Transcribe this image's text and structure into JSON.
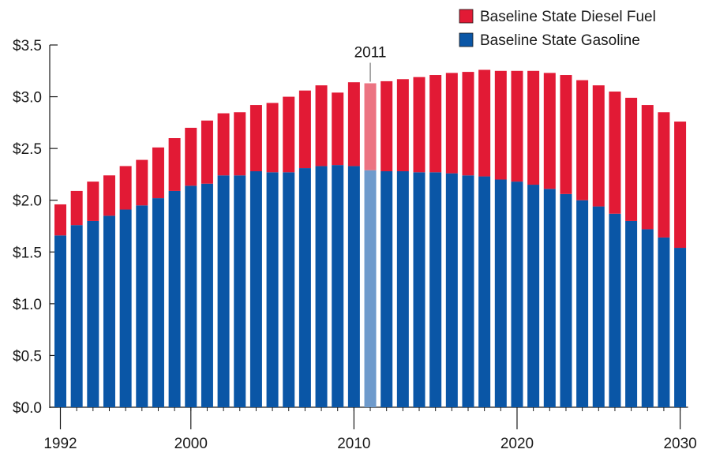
{
  "chart_data": {
    "type": "bar",
    "stacked": true,
    "ylim": [
      0,
      3.5
    ],
    "y_ticks": [
      {
        "value": 0.0,
        "label": "$0.0"
      },
      {
        "value": 0.5,
        "label": "$0.5"
      },
      {
        "value": 1.0,
        "label": "$1.0"
      },
      {
        "value": 1.5,
        "label": "$1.5"
      },
      {
        "value": 2.0,
        "label": "$2.0"
      },
      {
        "value": 2.5,
        "label": "$2.5"
      },
      {
        "value": 3.0,
        "label": "$3.0"
      },
      {
        "value": 3.5,
        "label": "$3.5"
      }
    ],
    "x_ticks": [
      {
        "value": 1992,
        "label": "1992"
      },
      {
        "value": 2000,
        "label": "2000"
      },
      {
        "value": 2010,
        "label": "2010"
      },
      {
        "value": 2020,
        "label": "2020"
      },
      {
        "value": 2030,
        "label": "2030"
      }
    ],
    "categories": [
      1992,
      1993,
      1994,
      1995,
      1996,
      1997,
      1998,
      1999,
      2000,
      2001,
      2002,
      2003,
      2004,
      2005,
      2006,
      2007,
      2008,
      2009,
      2010,
      2011,
      2012,
      2013,
      2014,
      2015,
      2016,
      2017,
      2018,
      2019,
      2020,
      2021,
      2022,
      2023,
      2024,
      2025,
      2026,
      2027,
      2028,
      2029,
      2030
    ],
    "series": [
      {
        "name": "Baseline State Gasoline",
        "color": "#0a56a6",
        "highlight_color": "#6f9bcc",
        "values": [
          1.66,
          1.76,
          1.8,
          1.85,
          1.91,
          1.95,
          2.02,
          2.09,
          2.14,
          2.16,
          2.24,
          2.24,
          2.28,
          2.27,
          2.27,
          2.31,
          2.33,
          2.34,
          2.33,
          2.29,
          2.28,
          2.28,
          2.27,
          2.27,
          2.26,
          2.24,
          2.23,
          2.2,
          2.18,
          2.15,
          2.11,
          2.06,
          2.0,
          1.94,
          1.87,
          1.8,
          1.72,
          1.64,
          1.54
        ]
      },
      {
        "name": "Baseline State Diesel Fuel",
        "color": "#e21a35",
        "highlight_color": "#ec7482",
        "values": [
          0.3,
          0.33,
          0.38,
          0.39,
          0.42,
          0.44,
          0.49,
          0.51,
          0.56,
          0.61,
          0.6,
          0.61,
          0.64,
          0.67,
          0.73,
          0.75,
          0.78,
          0.7,
          0.81,
          0.84,
          0.87,
          0.89,
          0.92,
          0.94,
          0.97,
          1.0,
          1.03,
          1.05,
          1.07,
          1.1,
          1.12,
          1.15,
          1.16,
          1.17,
          1.18,
          1.19,
          1.2,
          1.21,
          1.22
        ]
      }
    ],
    "highlight": {
      "category": 2011,
      "label": "2011"
    },
    "legend": {
      "position": "top-right",
      "order": [
        "Baseline State Diesel Fuel",
        "Baseline State Gasoline"
      ]
    },
    "grid": false
  }
}
